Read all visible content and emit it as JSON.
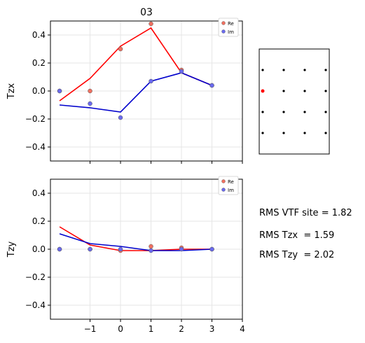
{
  "figure": {
    "title": "03",
    "rms_lines": [
      "RMS VTF site = 1.82",
      "RMS Tzx  = 1.59",
      "RMS Tzy  = 2.02"
    ]
  },
  "colors": {
    "re_line": "#ff0000",
    "im_line": "#0000cc",
    "re_point": "#f07060",
    "im_point": "#6a6aee",
    "site_dot": "#000000",
    "selected_dot": "#ff0000"
  },
  "chart_data": [
    {
      "type": "line",
      "title": "03",
      "ylabel": "Tzx",
      "xlabel": "",
      "xlim": [
        -2.3,
        4
      ],
      "ylim": [
        -0.5,
        0.5
      ],
      "x_ticks": [
        -1,
        0,
        1,
        2,
        3,
        4
      ],
      "x_tick_labels": [],
      "y_ticks": [
        -0.4,
        -0.2,
        0.0,
        0.2,
        0.4
      ],
      "y_tick_labels": [
        "−0.4",
        "−0.2",
        "0.0",
        "0.2",
        "0.4"
      ],
      "grid": true,
      "legend": {
        "position": "top-right",
        "entries": [
          "Re",
          "Im"
        ]
      },
      "series": [
        {
          "name": "Re",
          "kind": "points",
          "x": [
            -2,
            -1,
            0,
            1,
            2,
            3
          ],
          "y": [
            0.0,
            0.0,
            0.3,
            0.48,
            0.15,
            0.04
          ]
        },
        {
          "name": "Im",
          "kind": "points",
          "x": [
            -2,
            -1,
            0,
            1,
            2,
            3
          ],
          "y": [
            0.0,
            -0.09,
            -0.19,
            0.07,
            0.14,
            0.04
          ]
        },
        {
          "kind": "line",
          "color_key": "re_line",
          "x": [
            -2,
            -1,
            0,
            1,
            2,
            3
          ],
          "y": [
            -0.07,
            0.09,
            0.32,
            0.45,
            0.13,
            0.04
          ]
        },
        {
          "kind": "line",
          "color_key": "im_line",
          "x": [
            -2,
            -1,
            0,
            1,
            2,
            3
          ],
          "y": [
            -0.1,
            -0.12,
            -0.15,
            0.07,
            0.13,
            0.04
          ]
        }
      ]
    },
    {
      "type": "line",
      "ylabel": "Tzy",
      "xlabel": "",
      "xlim": [
        -2.3,
        4
      ],
      "ylim": [
        -0.5,
        0.5
      ],
      "x_ticks": [
        -1,
        0,
        1,
        2,
        3,
        4
      ],
      "x_tick_labels": [
        "−1",
        "0",
        "1",
        "2",
        "3",
        "4"
      ],
      "y_ticks": [
        -0.4,
        -0.2,
        0.0,
        0.2,
        0.4
      ],
      "y_tick_labels": [
        "−0.4",
        "−0.2",
        "0.0",
        "0.2",
        "0.4"
      ],
      "grid": true,
      "legend": {
        "position": "top-right",
        "entries": [
          "Re",
          "Im"
        ]
      },
      "series": [
        {
          "name": "Re",
          "kind": "points",
          "x": [
            -2,
            -1,
            0,
            1,
            2,
            3
          ],
          "y": [
            0.0,
            0.0,
            -0.01,
            0.02,
            0.01,
            0.0
          ]
        },
        {
          "name": "Im",
          "kind": "points",
          "x": [
            -2,
            -1,
            0,
            1,
            2,
            3
          ],
          "y": [
            0.0,
            0.0,
            0.0,
            -0.01,
            0.0,
            0.0
          ]
        },
        {
          "kind": "line",
          "color_key": "re_line",
          "x": [
            -2,
            -1,
            0,
            1,
            2,
            3
          ],
          "y": [
            0.16,
            0.03,
            -0.01,
            -0.01,
            0.0,
            0.0
          ]
        },
        {
          "kind": "line",
          "color_key": "im_line",
          "x": [
            -2,
            -1,
            0,
            1,
            2,
            3
          ],
          "y": [
            0.11,
            0.04,
            0.02,
            -0.01,
            -0.01,
            0.0
          ]
        }
      ]
    }
  ],
  "site_map": {
    "grid_cols": 4,
    "grid_rows": 4,
    "selected": {
      "col": 0,
      "row": 1
    }
  }
}
